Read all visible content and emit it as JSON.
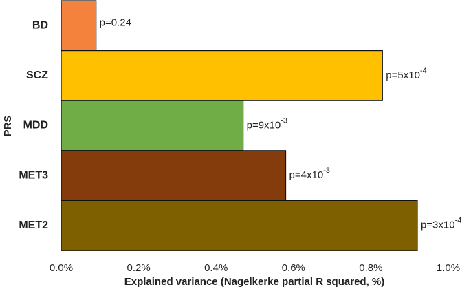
{
  "chart_data": {
    "type": "bar",
    "orientation": "horizontal",
    "x_label": "Explained variance (Nagelkerke partial R squared, %)",
    "y_label": "PRS",
    "categories": [
      "BD",
      "SCZ",
      "MDD",
      "MET3",
      "MET2"
    ],
    "values": [
      0.09,
      0.83,
      0.47,
      0.58,
      0.92
    ],
    "colors": [
      "#f4823c",
      "#ffc000",
      "#70ad47",
      "#843c0c",
      "#7f6000"
    ],
    "annotations": [
      {
        "text": "p=0.24"
      },
      {
        "text": "p=5x10",
        "sup": "-4"
      },
      {
        "text": "p=9x10",
        "sup": "-3"
      },
      {
        "text": "p=4x10",
        "sup": "-3"
      },
      {
        "text": "p=3x10",
        "sup": "-4"
      }
    ],
    "xlim": [
      0,
      1.0
    ],
    "xticks": [
      {
        "value": 0,
        "label": "0.0%"
      },
      {
        "value": 0.2,
        "label": "0.2%"
      },
      {
        "value": 0.4,
        "label": "0.4%"
      },
      {
        "value": 0.6,
        "label": "0.6%"
      },
      {
        "value": 0.8,
        "label": "0.8%"
      },
      {
        "value": 1.0,
        "label": "1.0%"
      }
    ],
    "grid": false
  }
}
